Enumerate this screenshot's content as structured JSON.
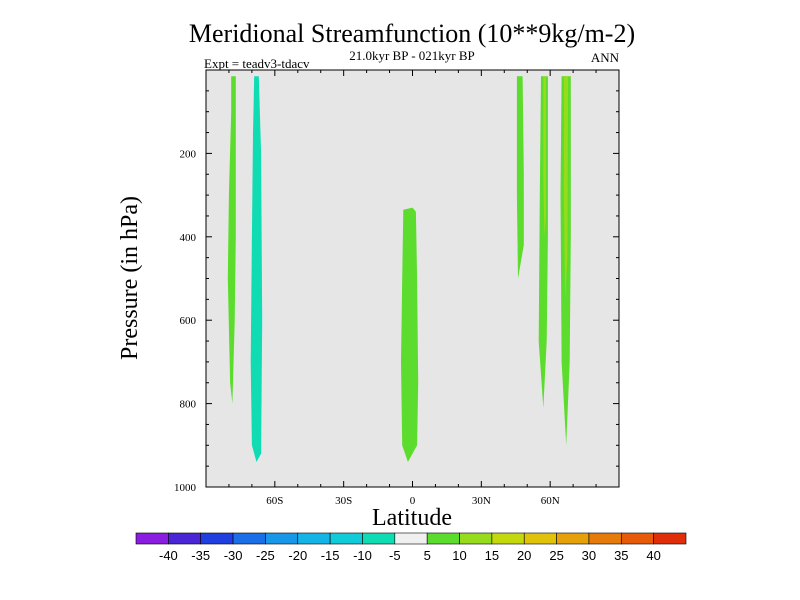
{
  "chart_data": {
    "type": "contour",
    "title": "Meridional Streamfunction (10**9kg/m-2)",
    "subtitle": "21.0kyr BP - 021kyr BP",
    "left_label": "Expt = teadv3-tdacv",
    "right_label": "ANN",
    "xlabel": "Latitude",
    "ylabel": "Pressure (in hPa)",
    "xlim": [
      -90,
      90
    ],
    "ylim": [
      1000,
      0
    ],
    "x_ticks": [
      {
        "value": -60,
        "label": "60S"
      },
      {
        "value": -30,
        "label": "30S"
      },
      {
        "value": 0,
        "label": "0"
      },
      {
        "value": 30,
        "label": "30N"
      },
      {
        "value": 60,
        "label": "60N"
      }
    ],
    "y_ticks": [
      {
        "value": 200,
        "label": "200"
      },
      {
        "value": 400,
        "label": "400"
      },
      {
        "value": 600,
        "label": "600"
      },
      {
        "value": 800,
        "label": "800"
      },
      {
        "value": 1000,
        "label": "1000"
      }
    ],
    "background_color": "#e6e6e6",
    "colorbar": {
      "labels": [
        "-40",
        "-35",
        "-30",
        "-25",
        "-20",
        "-15",
        "-10",
        "-5",
        "5",
        "10",
        "15",
        "20",
        "25",
        "30",
        "35",
        "40"
      ],
      "colors": [
        "#8a1de0",
        "#4a25d6",
        "#1f3fe0",
        "#1a6ee8",
        "#1896e8",
        "#14b4e6",
        "#12cbd8",
        "#10dcb4",
        "#f0f0f0",
        "#5cdc2c",
        "#96dc1c",
        "#c4d80e",
        "#e0c20a",
        "#e6a00a",
        "#e67a0a",
        "#e65a0a",
        "#e02e0a"
      ]
    },
    "features": [
      {
        "name": "sh-60s-positive-band",
        "level": "10",
        "color": "#5cdc2c",
        "outline": [
          [
            -79,
            15
          ],
          [
            -77,
            15
          ],
          [
            -77,
            400
          ],
          [
            -77.5,
            600
          ],
          [
            -78.5,
            800
          ],
          [
            -79.5,
            750
          ],
          [
            -80.5,
            500
          ],
          [
            -80,
            300
          ],
          [
            -79,
            100
          ]
        ]
      },
      {
        "name": "sh-60s-negative-band",
        "level": "-10",
        "color": "#10dcb4",
        "outline": [
          [
            -69,
            15
          ],
          [
            -67,
            15
          ],
          [
            -66,
            200
          ],
          [
            -65.5,
            600
          ],
          [
            -66,
            920
          ],
          [
            -68,
            940
          ],
          [
            -70,
            900
          ],
          [
            -70.5,
            700
          ],
          [
            -70,
            400
          ],
          [
            -69.5,
            150
          ]
        ]
      },
      {
        "name": "equatorial-positive-band",
        "level": "10",
        "color": "#5cdc2c",
        "outline": [
          [
            -4,
            335
          ],
          [
            0,
            330
          ],
          [
            1.5,
            340
          ],
          [
            2,
            500
          ],
          [
            2.5,
            750
          ],
          [
            2,
            900
          ],
          [
            -2,
            940
          ],
          [
            -4.5,
            900
          ],
          [
            -5,
            700
          ],
          [
            -4.5,
            500
          ]
        ]
      },
      {
        "name": "nh-45n-positive-band",
        "level": "10",
        "color": "#5cdc2c",
        "outline": [
          [
            45.5,
            15
          ],
          [
            48,
            15
          ],
          [
            48.5,
            250
          ],
          [
            48.5,
            420
          ],
          [
            46,
            500
          ],
          [
            45.5,
            300
          ]
        ]
      },
      {
        "name": "nh-58n-positive-band",
        "level": "10",
        "color": "#5cdc2c",
        "outline": [
          [
            56,
            15
          ],
          [
            59,
            15
          ],
          [
            59,
            400
          ],
          [
            58.5,
            650
          ],
          [
            57,
            810
          ],
          [
            55,
            650
          ],
          [
            55.5,
            300
          ]
        ]
      },
      {
        "name": "nh-58n-yellowgreen-core",
        "level": "15",
        "color": "#96dc1c",
        "outline": [
          [
            57,
            15
          ],
          [
            58.2,
            15
          ],
          [
            58.2,
            350
          ],
          [
            57.5,
            400
          ],
          [
            57,
            250
          ]
        ]
      },
      {
        "name": "nh-67n-positive-band",
        "level": "10",
        "color": "#5cdc2c",
        "outline": [
          [
            65,
            15
          ],
          [
            69,
            15
          ],
          [
            69,
            400
          ],
          [
            68.5,
            700
          ],
          [
            67,
            900
          ],
          [
            65,
            700
          ],
          [
            64.5,
            300
          ]
        ]
      },
      {
        "name": "nh-67n-yellowgreen-core",
        "level": "15",
        "color": "#96dc1c",
        "outline": [
          [
            66,
            15
          ],
          [
            67.8,
            15
          ],
          [
            67.5,
            450
          ],
          [
            66.5,
            550
          ],
          [
            66,
            300
          ]
        ]
      }
    ]
  }
}
